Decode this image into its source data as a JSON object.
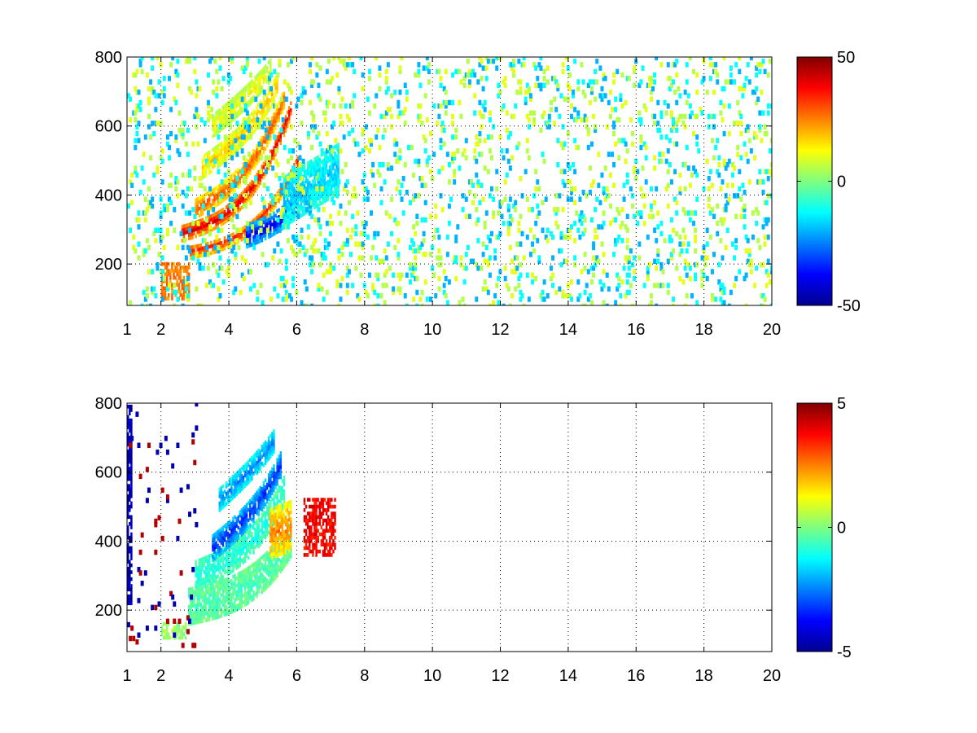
{
  "chart_data": [
    {
      "type": "heatmap",
      "title": "",
      "xlabel": "",
      "ylabel": "",
      "xlim": [
        1,
        20
      ],
      "ylim": [
        80,
        800
      ],
      "x_ticks": [
        1,
        2,
        4,
        6,
        8,
        10,
        12,
        14,
        16,
        18,
        20
      ],
      "x_tick_labels": [
        "1",
        "2",
        "4",
        "6",
        "8",
        "10",
        "12",
        "14",
        "16",
        "18",
        "20"
      ],
      "y_ticks": [
        200,
        400,
        600,
        800
      ],
      "y_tick_labels": [
        "200",
        "400",
        "600",
        "800"
      ],
      "grid": true,
      "colormap": "jet",
      "colorbar": {
        "placement": "right",
        "range": [
          -50,
          50
        ],
        "ticks": [
          -50,
          0,
          50
        ],
        "tick_labels": [
          "-50",
          "0",
          "50"
        ]
      },
      "features": [
        {
          "name": "band",
          "x_range": [
            2.8,
            6.0
          ],
          "y_start": 235,
          "slope": 20,
          "curve": 6,
          "width": 18,
          "value": 35
        },
        {
          "name": "band",
          "x_range": [
            2.6,
            5.8
          ],
          "y_start": 290,
          "slope": 30,
          "curve": 8,
          "width": 22,
          "value": 42
        },
        {
          "name": "band",
          "x_range": [
            3.0,
            5.6
          ],
          "y_start": 360,
          "slope": 55,
          "curve": 10,
          "width": 25,
          "value": 30
        },
        {
          "name": "band",
          "x_range": [
            3.2,
            5.4
          ],
          "y_start": 480,
          "slope": 70,
          "curve": 8,
          "width": 30,
          "value": 18
        },
        {
          "name": "band",
          "x_range": [
            3.5,
            5.2
          ],
          "y_start": 600,
          "slope": 80,
          "curve": 5,
          "width": 30,
          "value": 12
        },
        {
          "name": "band",
          "x_range": [
            4.5,
            6.0
          ],
          "y_start": 280,
          "slope": 40,
          "curve": 10,
          "width": 30,
          "value": -40
        },
        {
          "name": "band",
          "x_range": [
            5.6,
            7.2
          ],
          "y_start": 380,
          "slope": 60,
          "curve": 0,
          "width": 70,
          "value": -18
        },
        {
          "name": "blob",
          "x_range": [
            2.0,
            2.8
          ],
          "y_range": [
            100,
            200
          ],
          "value": 25
        }
      ],
      "background": {
        "x_range": [
          1,
          20
        ],
        "density": 0.08,
        "values": [
          -20,
          -12,
          5,
          10
        ]
      }
    },
    {
      "type": "heatmap",
      "title": "",
      "xlabel": "",
      "ylabel": "",
      "xlim": [
        1,
        20
      ],
      "ylim": [
        80,
        800
      ],
      "x_ticks": [
        1,
        2,
        4,
        6,
        8,
        10,
        12,
        14,
        16,
        18,
        20
      ],
      "x_tick_labels": [
        "1",
        "2",
        "4",
        "6",
        "8",
        "10",
        "12",
        "14",
        "16",
        "18",
        "20"
      ],
      "y_ticks": [
        200,
        400,
        600,
        800
      ],
      "y_tick_labels": [
        "200",
        "400",
        "600",
        "800"
      ],
      "grid": true,
      "colormap": "jet",
      "colorbar": {
        "placement": "right",
        "range": [
          -5,
          5
        ],
        "ticks": [
          -5,
          0,
          5
        ],
        "tick_labels": [
          "-5",
          "0",
          "5"
        ]
      },
      "features": [
        {
          "name": "band",
          "x_range": [
            2.8,
            5.8
          ],
          "y_start": 210,
          "slope": 20,
          "curve": 5,
          "width": 50,
          "value": -0.5
        },
        {
          "name": "band",
          "x_range": [
            3.0,
            5.6
          ],
          "y_start": 300,
          "slope": 40,
          "curve": 8,
          "width": 40,
          "value": -1.0
        },
        {
          "name": "band",
          "x_range": [
            3.5,
            5.5
          ],
          "y_start": 380,
          "slope": 80,
          "curve": 10,
          "width": 35,
          "value": -3.5
        },
        {
          "name": "band",
          "x_range": [
            3.7,
            5.3
          ],
          "y_start": 520,
          "slope": 90,
          "curve": 6,
          "width": 30,
          "value": -2.5
        },
        {
          "name": "band",
          "x_range": [
            5.2,
            5.8
          ],
          "y_start": 420,
          "slope": 40,
          "curve": 0,
          "width": 70,
          "value": 2.5
        },
        {
          "name": "blob",
          "x_range": [
            6.2,
            7.1
          ],
          "y_range": [
            360,
            520
          ],
          "value": 3.8
        },
        {
          "name": "blob",
          "x_range": [
            2.0,
            2.7
          ],
          "y_range": [
            120,
            160
          ],
          "value": 0.3
        },
        {
          "name": "blob",
          "x_range": [
            1.0,
            1.15
          ],
          "y_range": [
            220,
            790
          ],
          "value": -4.5
        }
      ],
      "background": {
        "x_range": [
          1,
          3
        ],
        "density": 0.02,
        "values": [
          -4.5,
          4.5
        ]
      }
    }
  ]
}
